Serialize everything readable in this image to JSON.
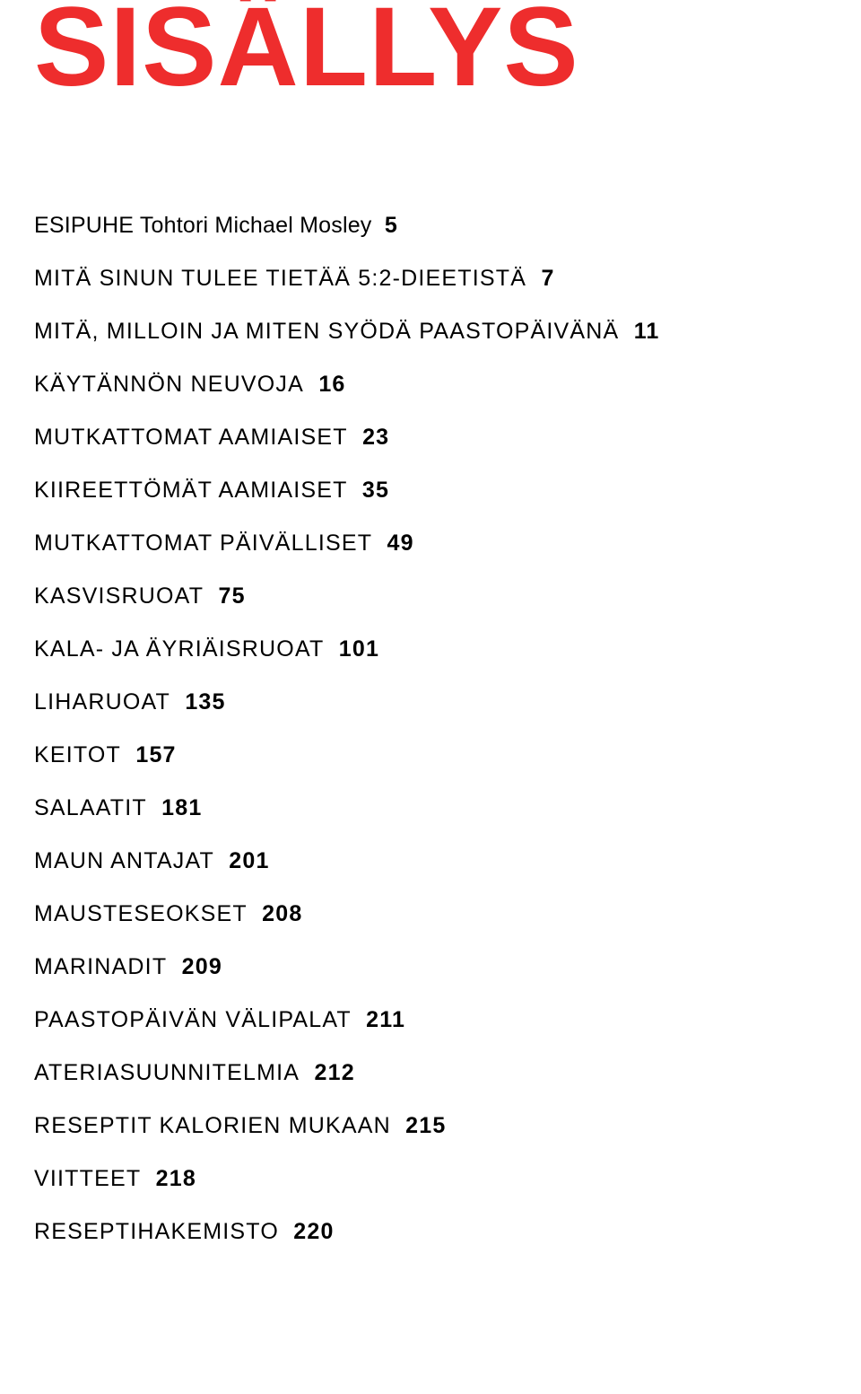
{
  "title": "SISÄLLYS",
  "title_color": "#ee2d2d",
  "title_fontsize": 125,
  "background_color": "#ffffff",
  "text_color": "#000000",
  "entry_fontsize": 25,
  "entries": [
    {
      "label": "ESIPUHE Tohtori Michael Mosley",
      "page": "5",
      "first": true
    },
    {
      "label": "MITÄ SINUN TULEE TIETÄÄ 5:2-DIEETISTÄ",
      "page": "7"
    },
    {
      "label": "MITÄ, MILLOIN JA MITEN SYÖDÄ PAASTOPÄIVÄNÄ",
      "page": "11"
    },
    {
      "label": "KÄYTÄNNÖN NEUVOJA",
      "page": "16"
    },
    {
      "label": "MUTKATTOMAT AAMIAISET",
      "page": "23"
    },
    {
      "label": "KIIREETTÖMÄT AAMIAISET",
      "page": "35"
    },
    {
      "label": "MUTKATTOMAT PÄIVÄLLISET",
      "page": "49"
    },
    {
      "label": "KASVISRUOAT",
      "page": "75"
    },
    {
      "label": "KALA- JA ÄYRIÄISRUOAT",
      "page": "101"
    },
    {
      "label": "LIHARUOAT",
      "page": "135"
    },
    {
      "label": "KEITOT",
      "page": "157"
    },
    {
      "label": "SALAATIT",
      "page": "181"
    },
    {
      "label": "MAUN ANTAJAT",
      "page": "201"
    },
    {
      "label": "MAUSTESEOKSET",
      "page": "208"
    },
    {
      "label": "MARINADIT",
      "page": "209"
    },
    {
      "label": "PAASTOPÄIVÄN VÄLIPALAT",
      "page": "211"
    },
    {
      "label": "ATERIASUUNNITELMIA",
      "page": "212"
    },
    {
      "label": "RESEPTIT KALORIEN MUKAAN",
      "page": "215"
    },
    {
      "label": "VIITTEET",
      "page": "218"
    },
    {
      "label": "RESEPTIHAKEMISTO",
      "page": "220"
    }
  ]
}
